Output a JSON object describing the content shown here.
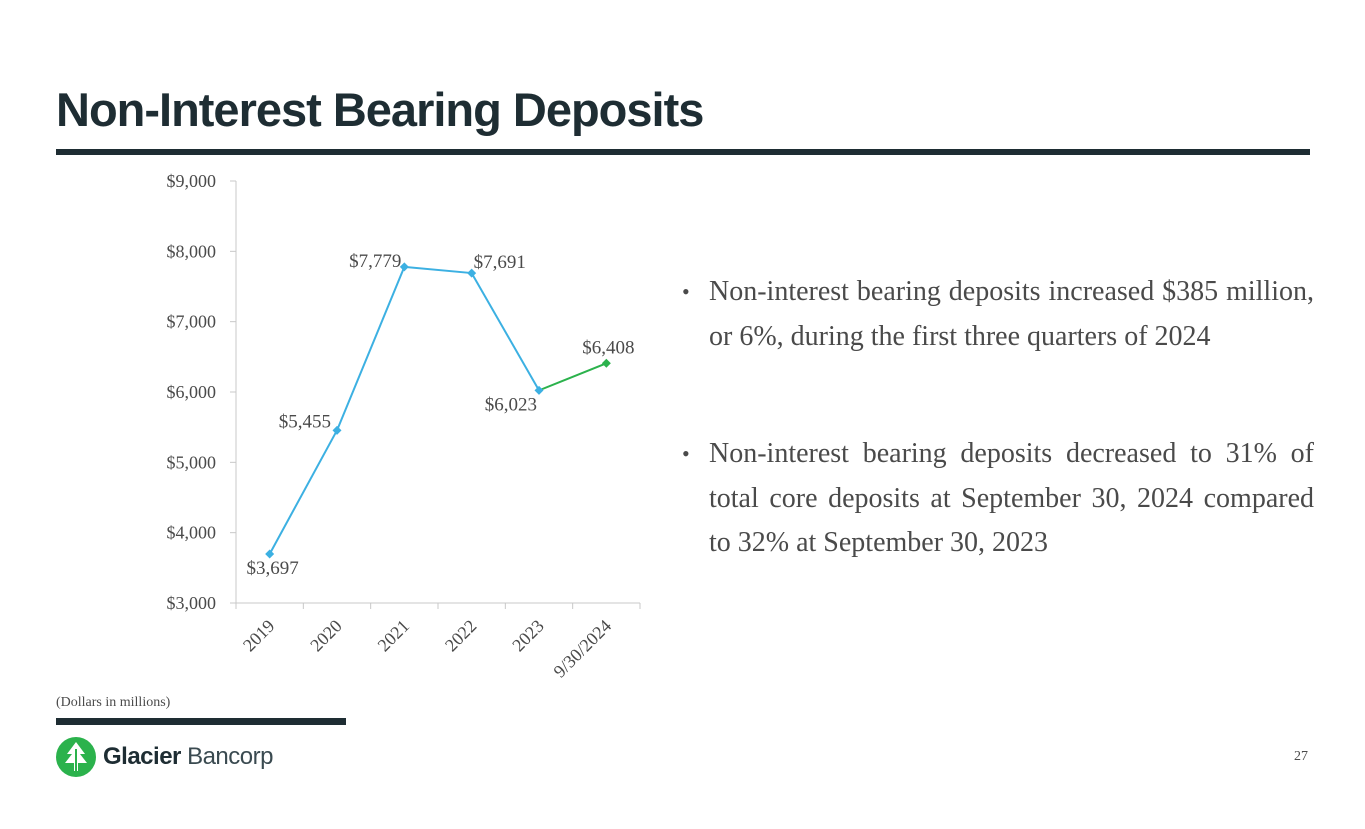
{
  "slide": {
    "title": "Non-Interest Bearing Deposits",
    "note": "(Dollars in millions)",
    "page_number": "27",
    "logo": {
      "name_strong": "Glacier",
      "name_light": "Bancorp",
      "icon": "glacier-tree-logo-icon",
      "color": "#2bb24c"
    },
    "bullets": [
      "Non-interest bearing deposits increased $385 million, or 6%, during the first three quarters of 2024",
      "Non-interest bearing deposits decreased to 31% of total core deposits at September 30, 2024 compared to 32% at September 30, 2023"
    ],
    "bullet_glyph": "•"
  },
  "colors": {
    "title": "#1e2d33",
    "line_primary": "#3cb0e2",
    "line_latest": "#2bb24c",
    "axis": "#c8c8c8",
    "text": "#4a4a4a"
  },
  "chart_data": {
    "type": "line",
    "title": "",
    "xlabel": "",
    "ylabel": "",
    "categories": [
      "2019",
      "2020",
      "2021",
      "2022",
      "2023",
      "9/30/2024"
    ],
    "values": [
      3697,
      5455,
      7779,
      7691,
      6023,
      6408
    ],
    "data_labels": [
      "$3,697",
      "$5,455",
      "$7,779",
      "$7,691",
      "$6,023",
      "$6,408"
    ],
    "y_ticks": [
      3000,
      4000,
      5000,
      6000,
      7000,
      8000,
      9000
    ],
    "y_tick_labels": [
      "$3,000",
      "$4,000",
      "$5,000",
      "$6,000",
      "$7,000",
      "$8,000",
      "$9,000"
    ],
    "ylim": [
      3000,
      9000
    ],
    "grid": false,
    "legend": "none",
    "latest_segment_highlight": true
  }
}
